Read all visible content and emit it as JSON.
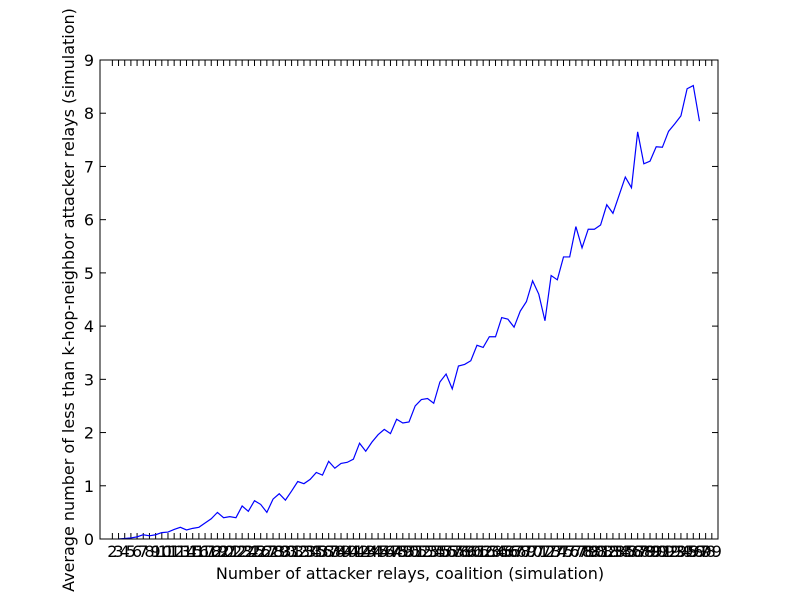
{
  "chart_data": {
    "type": "line",
    "xlabel": "Number of attacker relays, coalition (simulation)",
    "ylabel": "Average number of less than k-hop-neighbor attacker relays (simulation)",
    "x": [
      3,
      4,
      5,
      6,
      7,
      8,
      9,
      10,
      11,
      12,
      13,
      14,
      15,
      16,
      17,
      18,
      19,
      20,
      21,
      22,
      23,
      24,
      25,
      26,
      27,
      28,
      29,
      30,
      31,
      32,
      33,
      34,
      35,
      36,
      37,
      38,
      39,
      40,
      41,
      42,
      43,
      44,
      45,
      46,
      47,
      48,
      49,
      50,
      51,
      52,
      53,
      54,
      55,
      56,
      57,
      58,
      59,
      60,
      61,
      62,
      63,
      64,
      65,
      66,
      67,
      68,
      69,
      70,
      71,
      72,
      73,
      74,
      75,
      76,
      77,
      78,
      79,
      80,
      81,
      82,
      83,
      84,
      85,
      86,
      87,
      88,
      89,
      90,
      91,
      92,
      93,
      94,
      95,
      96,
      97
    ],
    "series": [
      {
        "color": "#0000ff",
        "values": [
          0,
          0.01,
          0.02,
          0.04,
          0.08,
          0.06,
          0.08,
          0.12,
          0.13,
          0.18,
          0.22,
          0.17,
          0.2,
          0.22,
          0.3,
          0.38,
          0.5,
          0.4,
          0.42,
          0.4,
          0.62,
          0.52,
          0.72,
          0.65,
          0.5,
          0.75,
          0.85,
          0.73,
          0.9,
          1.08,
          1.04,
          1.12,
          1.25,
          1.2,
          1.46,
          1.33,
          1.42,
          1.44,
          1.5,
          1.8,
          1.65,
          1.82,
          1.96,
          2.06,
          1.98,
          2.25,
          2.18,
          2.2,
          2.5,
          2.62,
          2.64,
          2.55,
          2.95,
          3.1,
          2.82,
          3.25,
          3.28,
          3.35,
          3.64,
          3.6,
          3.8,
          3.8,
          4.16,
          4.13,
          3.98,
          4.28,
          4.46,
          4.85,
          4.6,
          4.1,
          4.95,
          4.87,
          5.3,
          5.3,
          5.87,
          5.47,
          5.82,
          5.82,
          5.9,
          6.28,
          6.12,
          6.46,
          6.8,
          6.6,
          7.65,
          7.05,
          7.1,
          7.37,
          7.36,
          7.66,
          7.8,
          7.95,
          8.46,
          8.52,
          7.85
        ]
      }
    ],
    "xlim": [
      0,
      100
    ],
    "xticks": [
      2,
      3,
      4,
      5,
      6,
      7,
      8,
      9,
      10,
      11,
      12,
      13,
      14,
      15,
      16,
      17,
      18,
      19,
      20,
      21,
      22,
      23,
      24,
      25,
      26,
      27,
      28,
      29,
      30,
      31,
      32,
      33,
      34,
      35,
      36,
      37,
      38,
      39,
      40,
      41,
      42,
      43,
      44,
      45,
      46,
      47,
      48,
      49,
      50,
      51,
      52,
      53,
      54,
      55,
      56,
      57,
      58,
      59,
      60,
      61,
      62,
      63,
      64,
      65,
      66,
      67,
      68,
      69,
      70,
      71,
      72,
      73,
      74,
      75,
      76,
      77,
      78,
      79,
      80,
      81,
      82,
      83,
      84,
      85,
      86,
      87,
      88,
      89,
      90,
      91,
      92,
      93,
      94,
      95,
      96,
      97,
      98,
      99
    ],
    "ylim": [
      0,
      9
    ],
    "yticks": [
      0,
      1,
      2,
      3,
      4,
      5,
      6,
      7,
      8,
      9
    ]
  }
}
